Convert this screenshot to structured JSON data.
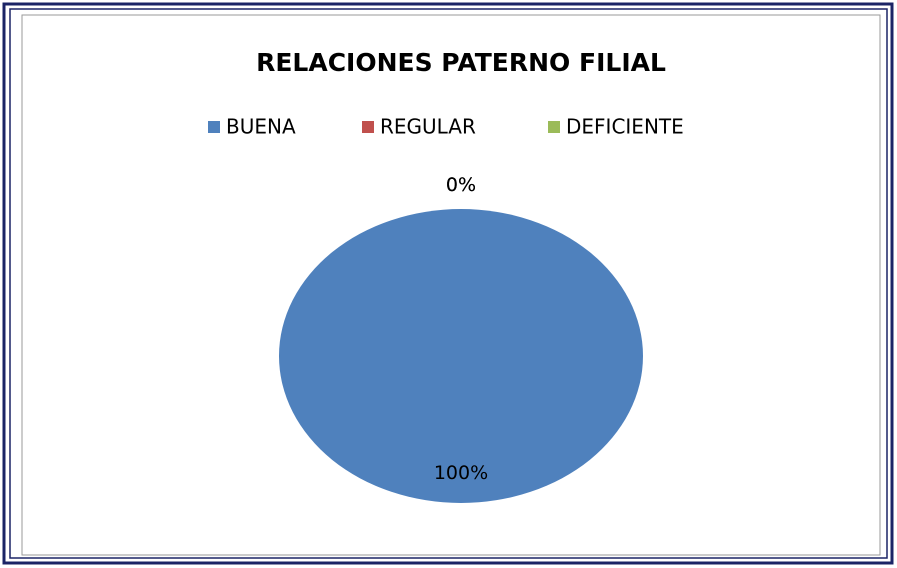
{
  "chart_data": {
    "type": "pie",
    "title": "RELACIONES PATERNO FILIAL",
    "categories": [
      "BUENA",
      "REGULAR",
      "DEFICIENTE"
    ],
    "values": [
      100,
      0,
      0
    ],
    "value_labels": [
      "100%",
      "0%",
      "0%"
    ],
    "colors": [
      "#4f81bd",
      "#c0504d",
      "#9bbb59"
    ],
    "legend": "top"
  }
}
